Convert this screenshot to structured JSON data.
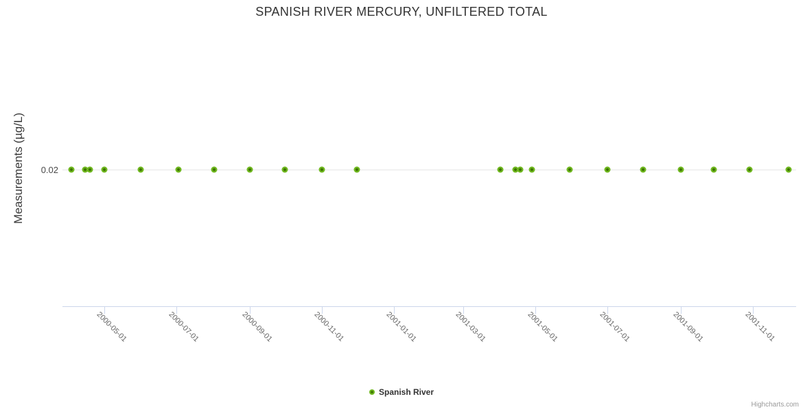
{
  "chart_data": {
    "type": "scatter",
    "title": "SPANISH RIVER MERCURY, UNFILTERED TOTAL",
    "ylabel": "Measurements (µg/L)",
    "y_tick_label": "0.02",
    "x_tick_labels": [
      "2000-05-01",
      "2000-07-01",
      "2000-09-01",
      "2000-11-01",
      "2001-01-01",
      "2001-03-01",
      "2001-05-01",
      "2001-07-01",
      "2001-09-01",
      "2001-11-01"
    ],
    "x_range": [
      "2000-03-25",
      "2001-12-08"
    ],
    "grid": "single-horizontal-gridline-at-0.02",
    "legend_position": "bottom-center",
    "series": [
      {
        "name": "Spanish River",
        "color": "#6fb71f",
        "marker": "circle",
        "points": [
          {
            "x": "2000-04-03",
            "y": 0.02
          },
          {
            "x": "2000-04-15",
            "y": 0.02
          },
          {
            "x": "2000-04-19",
            "y": 0.02
          },
          {
            "x": "2000-05-01",
            "y": 0.02
          },
          {
            "x": "2000-06-01",
            "y": 0.02
          },
          {
            "x": "2000-07-03",
            "y": 0.02
          },
          {
            "x": "2000-08-02",
            "y": 0.02
          },
          {
            "x": "2000-09-01",
            "y": 0.02
          },
          {
            "x": "2000-10-01",
            "y": 0.02
          },
          {
            "x": "2000-11-01",
            "y": 0.02
          },
          {
            "x": "2000-12-01",
            "y": 0.02
          },
          {
            "x": "2001-04-01",
            "y": 0.02
          },
          {
            "x": "2001-04-14",
            "y": 0.02
          },
          {
            "x": "2001-04-18",
            "y": 0.02
          },
          {
            "x": "2001-04-28",
            "y": 0.02
          },
          {
            "x": "2001-05-30",
            "y": 0.02
          },
          {
            "x": "2001-07-01",
            "y": 0.02
          },
          {
            "x": "2001-07-31",
            "y": 0.02
          },
          {
            "x": "2001-09-01",
            "y": 0.02
          },
          {
            "x": "2001-09-29",
            "y": 0.02
          },
          {
            "x": "2001-10-29",
            "y": 0.02
          },
          {
            "x": "2001-12-01",
            "y": 0.02
          }
        ]
      }
    ],
    "credit": "Highcharts.com"
  },
  "colors": {
    "series_green": "#6fb71f",
    "marker_center_green": "#3c7300",
    "gridline": "#e6e6e6",
    "axis_line": "#ccd6eb",
    "title_text": "#333333",
    "axis_label_text": "#666666",
    "credit_text": "#999999",
    "background": "#ffffff"
  }
}
